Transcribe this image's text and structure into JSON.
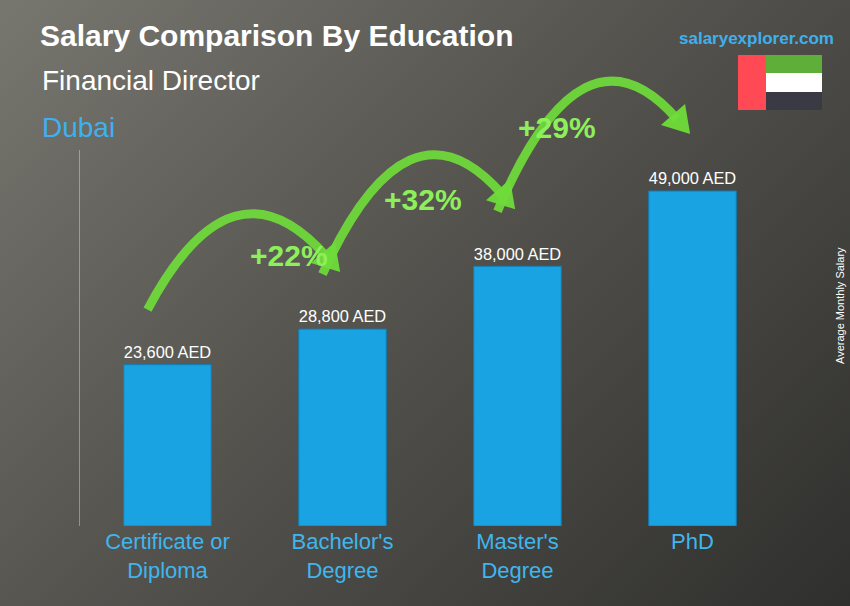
{
  "chart_data": {
    "type": "bar",
    "title": "Salary Comparison By Education",
    "subtitle": "Financial Director",
    "location": "Dubai",
    "source": "salaryexplorer.com",
    "ylabel": "Average Monthly Salary",
    "categories": [
      "Certificate or Diploma",
      "Bachelor's Degree",
      "Master's Degree",
      "PhD"
    ],
    "values": [
      23600,
      28800,
      38000,
      49000
    ],
    "value_labels": [
      "23,600 AED",
      "28,800 AED",
      "38,000 AED",
      "49,000 AED"
    ],
    "data_labels": true,
    "color": "#1aa3e3",
    "ylim": [
      0,
      55000
    ],
    "grid": false,
    "tick_labels": "x",
    "annotations": [
      "+22%",
      "+32%",
      "+29%"
    ]
  }
}
